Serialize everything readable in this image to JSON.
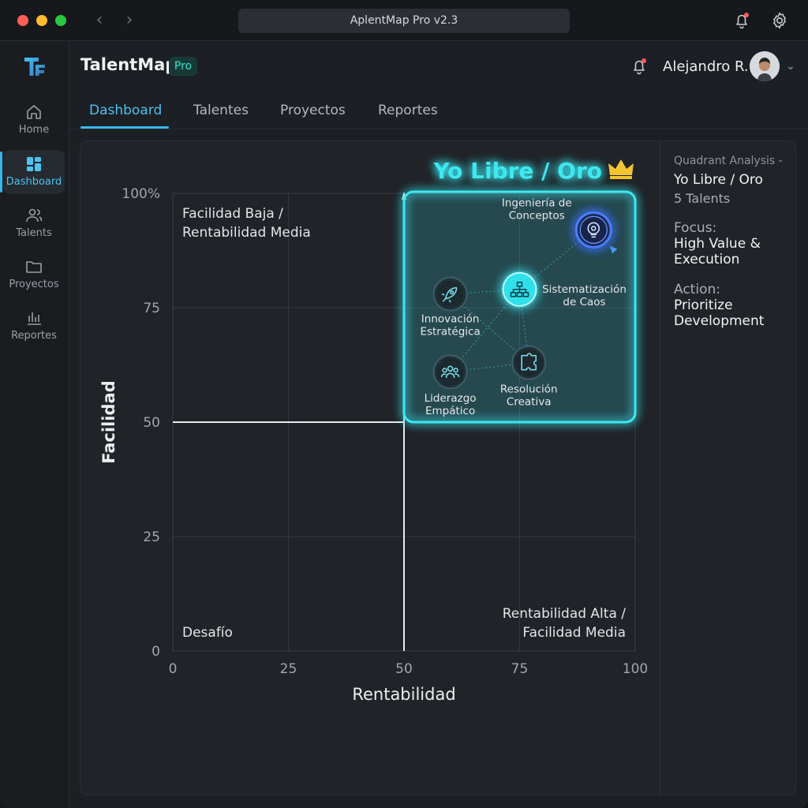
{
  "window": {
    "title": "AplentMap Pro v2.3"
  },
  "app": {
    "name": "TalentMap",
    "badge": "Pro"
  },
  "user": {
    "name": "Alejandro R."
  },
  "sidebar": {
    "items": [
      {
        "label": "Home",
        "icon": "home-icon"
      },
      {
        "label": "Dashboard",
        "icon": "dashboard-icon",
        "active": true
      },
      {
        "label": "Talents",
        "icon": "users-icon"
      },
      {
        "label": "Proyectos",
        "icon": "folder-icon"
      },
      {
        "label": "Reportes",
        "icon": "bar-chart-icon"
      }
    ]
  },
  "tabs": [
    {
      "label": "Dashboard",
      "active": true
    },
    {
      "label": "Talentes"
    },
    {
      "label": "Proyectos"
    },
    {
      "label": "Reportes"
    }
  ],
  "chart_data": {
    "type": "scatter",
    "xlabel": "Rentabilidad",
    "ylabel": "Facilidad",
    "xlim": [
      0,
      100
    ],
    "ylim": [
      0,
      100
    ],
    "x_ticks": [
      "0",
      "25",
      "50",
      "75",
      "100"
    ],
    "y_ticks": [
      "0",
      "25",
      "50",
      "75",
      "100%"
    ],
    "grid": true,
    "highlight_quadrant": {
      "title": "Yo Libre / Oro",
      "x_range": [
        50,
        100
      ],
      "y_range": [
        50,
        100
      ],
      "color": "#3de8f0"
    },
    "quadrant_labels": {
      "top_left": [
        "Facilidad Baja /",
        "Rentabilidad Media"
      ],
      "bottom_left": [
        "Desafío"
      ],
      "bottom_right": [
        "Rentabilidad Alta /",
        "Facilidad Media"
      ]
    },
    "points": [
      {
        "name": [
          "Ingeniería de",
          "Conceptos"
        ],
        "x": 91,
        "y": 92,
        "icon": "gear-bulb-icon",
        "style": "glow-blue"
      },
      {
        "name": [
          "Sistematización",
          "de Caos"
        ],
        "x": 75,
        "y": 79,
        "icon": "hierarchy-icon",
        "style": "glow-cyan"
      },
      {
        "name": [
          "Innovación",
          "Estratégica"
        ],
        "x": 60,
        "y": 78,
        "icon": "rocket-icon",
        "style": "ring"
      },
      {
        "name": [
          "Resolución",
          "Creativa"
        ],
        "x": 77,
        "y": 63,
        "icon": "puzzle-icon",
        "style": "ring"
      },
      {
        "name": [
          "Liderazgo",
          "Empático"
        ],
        "x": 60,
        "y": 61,
        "icon": "team-icon",
        "style": "ring"
      }
    ],
    "links": [
      [
        4,
        3
      ],
      [
        4,
        1
      ],
      [
        2,
        1
      ],
      [
        2,
        3
      ],
      [
        1,
        3
      ],
      [
        1,
        0
      ]
    ]
  },
  "analysis": {
    "label": "Quadrant Analysis -",
    "title": "Yo Libre / Oro",
    "count": "5 Talents",
    "focus_label": "Focus:",
    "focus_value": [
      "High Value &",
      "Execution"
    ],
    "action_label": "Action:",
    "action_value": [
      "Prioritize",
      "Development"
    ]
  },
  "colors": {
    "accent": "#35b7ee",
    "highlight": "#3de8f0",
    "crown": "#f4c430",
    "notification": "#ff5a5f"
  }
}
